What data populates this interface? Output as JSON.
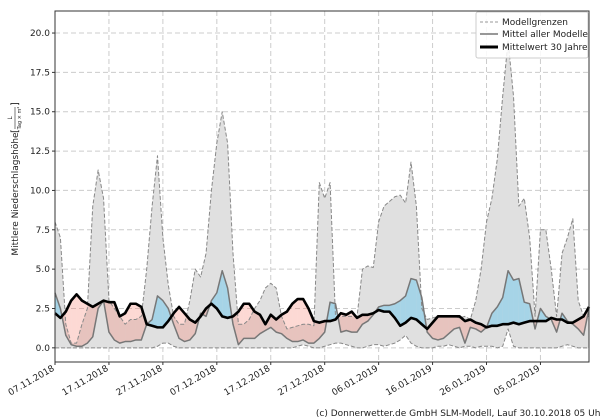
{
  "chart_data": {
    "type": "area",
    "ylabel": "Mittlere Niederschlagshöhe",
    "ylabel_unit_num": "L",
    "ylabel_unit_den": "Tag × m²",
    "ylim": [
      -0.9,
      21.4
    ],
    "yticks": [
      "0.0",
      "2.5",
      "5.0",
      "7.5",
      "10.0",
      "12.5",
      "15.0",
      "17.5",
      "20.0"
    ],
    "ytick_values": [
      0,
      2.5,
      5,
      7.5,
      10,
      12.5,
      15,
      17.5,
      20
    ],
    "xlim_days": [
      0,
      99
    ],
    "xticks": [
      "07.11.2018",
      "17.11.2018",
      "27.11.2018",
      "07.12.2018",
      "17.12.2018",
      "27.12.2018",
      "06.01.2019",
      "16.01.2019",
      "26.01.2019",
      "05.02.2019"
    ],
    "xtick_days": [
      0,
      10,
      20,
      30,
      40,
      50,
      60,
      70,
      80,
      90
    ],
    "grid": true,
    "legend_position": "top-right",
    "legend": [
      "Modellgrenzen",
      "Mittel aller Modelle",
      "Mittelwert 30 Jahre"
    ],
    "colors": {
      "band": "#e0e0e0",
      "above": "rgba(135,206,235,0.65)",
      "below": "rgba(250,128,114,0.3)"
    },
    "series": [
      {
        "name": "Modellgrenzen (oben)",
        "values": [
          8.0,
          7.0,
          1.5,
          0.3,
          0.3,
          1.5,
          2.5,
          9,
          11.3,
          9.5,
          3,
          2.5,
          2,
          1.5,
          1.8,
          1.8,
          2,
          5,
          9,
          12.2,
          7,
          4,
          2,
          1.5,
          1.5,
          3,
          5,
          4.5,
          6,
          10,
          13,
          15,
          13,
          6,
          1.5,
          1.5,
          1.8,
          2.5,
          3,
          3.8,
          4.1,
          3.8,
          2,
          1.2,
          1.3,
          1.4,
          1.5,
          1.5,
          1.4,
          10.5,
          9.5,
          10.5,
          2,
          2,
          2,
          2,
          2,
          5,
          5.2,
          5.1,
          8,
          9,
          9.3,
          9.6,
          9.7,
          9.2,
          11.8,
          9,
          2.5,
          1.8,
          1.9,
          2,
          2,
          2,
          2,
          1.9,
          2,
          1.8,
          3,
          5,
          8,
          9.5,
          12,
          16,
          19.5,
          16,
          9,
          9.5,
          7,
          2,
          7.5,
          7.5,
          5,
          2,
          6,
          7,
          8.2,
          3,
          2,
          2
        ]
      },
      {
        "name": "Modellgrenzen (unten)",
        "values": [
          0,
          0,
          0,
          0,
          0,
          0,
          0,
          0,
          0,
          0,
          0,
          0,
          0,
          0,
          0,
          0,
          0,
          0,
          0,
          0.1,
          0.3,
          0.3,
          0.1,
          0,
          0,
          0,
          0,
          0,
          0,
          0,
          0,
          0,
          0,
          0,
          0,
          0,
          0,
          0,
          0,
          0,
          0,
          0,
          0,
          0,
          0,
          0.1,
          0.2,
          0.1,
          0,
          0,
          0.1,
          0.2,
          0.3,
          0.3,
          0.2,
          0.1,
          0,
          0,
          0.1,
          0.2,
          0.2,
          0.1,
          0.2,
          0.3,
          0.5,
          0.8,
          0.3,
          0.1,
          0,
          0,
          0,
          0.1,
          0.1,
          0.2,
          0.1,
          0,
          0.1,
          0.1,
          0,
          0.1,
          0.1,
          0.1,
          0,
          0.1,
          1.2,
          0.1,
          0,
          0,
          0,
          0,
          0,
          0,
          0,
          0,
          0.1,
          0.2,
          0.1,
          0,
          0,
          0
        ]
      },
      {
        "name": "Mittel aller Modelle",
        "values": [
          3.5,
          2.5,
          0.8,
          0.2,
          0.1,
          0.1,
          0.3,
          0.7,
          2.5,
          3.0,
          1.0,
          0.5,
          0.3,
          0.4,
          0.4,
          0.5,
          0.5,
          1.5,
          1.8,
          3.3,
          3.0,
          2.5,
          1.5,
          0.6,
          0.4,
          0.5,
          0.9,
          2.2,
          2.0,
          3.0,
          3.5,
          4.9,
          3.8,
          1.5,
          0.2,
          0.6,
          0.6,
          0.6,
          0.9,
          1.1,
          1.3,
          1.0,
          0.9,
          0.6,
          0.4,
          0.4,
          0.5,
          0.3,
          0.3,
          0.6,
          1.0,
          2.9,
          2.8,
          1.0,
          1.1,
          1.0,
          1.0,
          1.5,
          1.7,
          2.1,
          2.6,
          2.7,
          2.7,
          2.8,
          3.0,
          3.3,
          4.4,
          4.3,
          3.2,
          1.0,
          0.6,
          0.5,
          0.6,
          0.9,
          1.2,
          1.3,
          0.3,
          1.3,
          1.2,
          1.0,
          1.3,
          2.2,
          2.6,
          3.2,
          4.9,
          4.3,
          4.4,
          2.9,
          2.8,
          1.2,
          2.5,
          2.0,
          1.8,
          1.0,
          2.2,
          1.7,
          1.5,
          1.2,
          0.8,
          2.5
        ]
      },
      {
        "name": "Mittelwert 30 Jahre",
        "values": [
          2.2,
          1.9,
          2.3,
          3.0,
          3.4,
          3.0,
          2.8,
          2.6,
          2.8,
          3.0,
          2.9,
          2.9,
          2.0,
          2.2,
          2.8,
          2.8,
          2.6,
          1.5,
          1.4,
          1.3,
          1.3,
          1.7,
          2.2,
          2.6,
          2.2,
          1.8,
          1.6,
          2.0,
          2.5,
          2.8,
          2.5,
          2.0,
          1.9,
          2.0,
          2.3,
          2.8,
          2.8,
          2.3,
          2.1,
          1.5,
          2.1,
          1.8,
          2.1,
          2.3,
          2.8,
          3.1,
          3.1,
          2.5,
          1.7,
          1.6,
          1.7,
          1.7,
          1.8,
          2.2,
          2.1,
          2.3,
          1.9,
          2.1,
          2.1,
          2.2,
          2.4,
          2.3,
          2.3,
          1.9,
          1.4,
          1.6,
          1.9,
          1.8,
          1.5,
          1.2,
          1.6,
          2.0,
          2.0,
          2.0,
          2.0,
          2.0,
          1.7,
          1.8,
          1.6,
          1.5,
          1.3,
          1.4,
          1.4,
          1.5,
          1.5,
          1.6,
          1.5,
          1.6,
          1.7,
          1.7,
          1.7,
          1.7,
          1.9,
          1.8,
          1.8,
          1.6,
          1.6,
          1.8,
          2.0,
          2.6
        ]
      }
    ]
  },
  "footer": "(c) Donnerwetter.de GmbH SLM-Modell, Lauf 30.10.2018 05 Uhr"
}
